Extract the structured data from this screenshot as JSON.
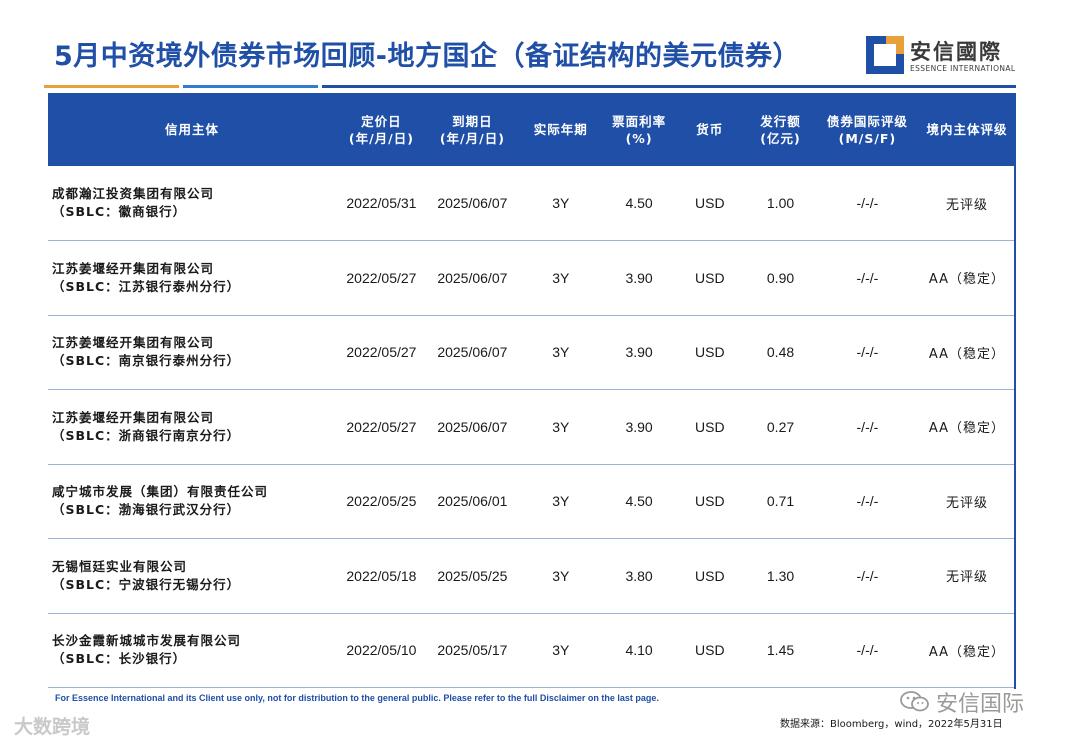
{
  "title": "5月中资境外债券市场回顾-地方国企（备证结构的美元债券）",
  "logo": {
    "cn": "安信國際",
    "en": "ESSENCE INTERNATIONAL",
    "icon": "essence-logo-mark"
  },
  "colors": {
    "primary": "#1f4fa7",
    "accent_orange": "#e8a13a",
    "accent_blue": "#2f7fd0"
  },
  "table": {
    "headers": {
      "entity": "信用主体",
      "pricing_1": "定价日",
      "pricing_2": "(年/月/日)",
      "maturity_1": "到期日",
      "maturity_2": "(年/月/日)",
      "tenor": "实际年期",
      "coupon_1": "票面利率",
      "coupon_2": "(%)",
      "currency": "货币",
      "amount_1": "发行额",
      "amount_2": "(亿元)",
      "intl_rating_1": "债券国际评级",
      "intl_rating_2": "(M/S/F)",
      "domestic_rating": "境内主体评级"
    },
    "rows": [
      {
        "entity_line1": "成都瀚江投资集团有限公司",
        "entity_line2": "（SBLC：徽商银行）",
        "pricing": "2022/05/31",
        "maturity": "2025/06/07",
        "tenor": "3Y",
        "coupon": "4.50",
        "currency": "USD",
        "amount": "1.00",
        "intl_rating": "-/-/-",
        "domestic_rating": "无评级"
      },
      {
        "entity_line1": "江苏姜堰经开集团有限公司",
        "entity_line2": "（SBLC：江苏银行泰州分行）",
        "pricing": "2022/05/27",
        "maturity": "2025/06/07",
        "tenor": "3Y",
        "coupon": "3.90",
        "currency": "USD",
        "amount": "0.90",
        "intl_rating": "-/-/-",
        "domestic_rating": "AA（稳定）"
      },
      {
        "entity_line1": "江苏姜堰经开集团有限公司",
        "entity_line2": "（SBLC：南京银行泰州分行）",
        "pricing": "2022/05/27",
        "maturity": "2025/06/07",
        "tenor": "3Y",
        "coupon": "3.90",
        "currency": "USD",
        "amount": "0.48",
        "intl_rating": "-/-/-",
        "domestic_rating": "AA（稳定）"
      },
      {
        "entity_line1": "江苏姜堰经开集团有限公司",
        "entity_line2": "（SBLC：浙商银行南京分行）",
        "pricing": "2022/05/27",
        "maturity": "2025/06/07",
        "tenor": "3Y",
        "coupon": "3.90",
        "currency": "USD",
        "amount": "0.27",
        "intl_rating": "-/-/-",
        "domestic_rating": "AA（稳定）"
      },
      {
        "entity_line1": "咸宁城市发展（集团）有限责任公司",
        "entity_line2": "（SBLC：渤海银行武汉分行）",
        "pricing": "2022/05/25",
        "maturity": "2025/06/01",
        "tenor": "3Y",
        "coupon": "4.50",
        "currency": "USD",
        "amount": "0.71",
        "intl_rating": "-/-/-",
        "domestic_rating": "无评级"
      },
      {
        "entity_line1": "无锡恒廷实业有限公司",
        "entity_line2": "（SBLC：宁波银行无锡分行）",
        "pricing": "2022/05/18",
        "maturity": "2025/05/25",
        "tenor": "3Y",
        "coupon": "3.80",
        "currency": "USD",
        "amount": "1.30",
        "intl_rating": "-/-/-",
        "domestic_rating": "无评级"
      },
      {
        "entity_line1": "长沙金霞新城城市发展有限公司",
        "entity_line2": "（SBLC：长沙银行）",
        "pricing": "2022/05/10",
        "maturity": "2025/05/17",
        "tenor": "3Y",
        "coupon": "4.10",
        "currency": "USD",
        "amount": "1.45",
        "intl_rating": "-/-/-",
        "domestic_rating": "AA（稳定）"
      }
    ]
  },
  "disclaimer": "For Essence International and its Client use only, not for distribution to the general public. Please refer to the full Disclaimer on the last page.",
  "source": "数据来源：Bloomberg，wind，2022年5月31日",
  "watermarks": {
    "left": "大数跨境",
    "right": "安信国际",
    "right_icon": "wechat-icon"
  }
}
